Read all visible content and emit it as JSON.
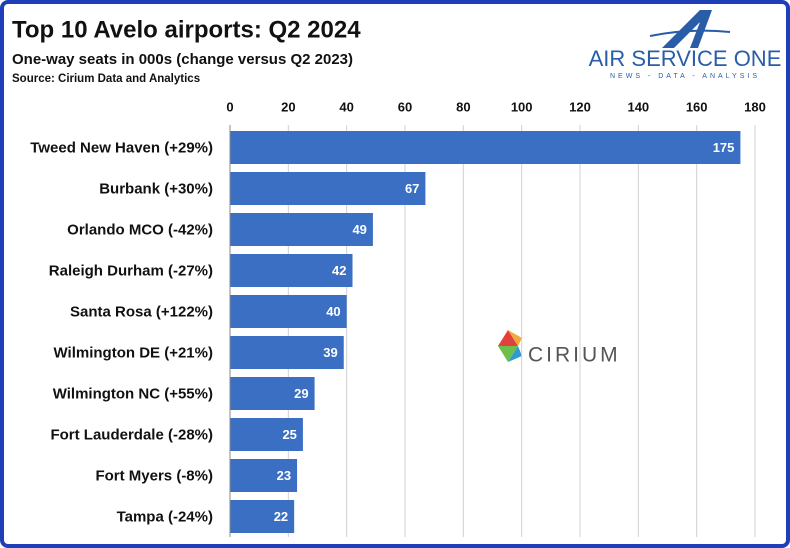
{
  "chart_data": {
    "type": "bar",
    "orientation": "horizontal",
    "title": "Top 10 Avelo airports: Q2 2024",
    "subtitle": "One-way seats in 000s (change versus Q2 2023)",
    "source": "Source: Cirium Data and Analytics",
    "categories": [
      "Tweed New Haven (+29%)",
      "Burbank (+30%)",
      "Orlando MCO (-42%)",
      "Raleigh Durham (-27%)",
      "Santa Rosa (+122%)",
      "Wilmington DE (+21%)",
      "Wilmington NC (+55%)",
      "Fort Lauderdale (-28%)",
      "Fort Myers (-8%)",
      "Tampa (-24%)"
    ],
    "values": [
      175,
      67,
      49,
      42,
      40,
      39,
      29,
      25,
      23,
      22
    ],
    "color": "#3a6fc4",
    "xlim": [
      0,
      180
    ],
    "xticks": [
      0,
      20,
      40,
      60,
      80,
      100,
      120,
      140,
      160,
      180
    ],
    "grid": true
  },
  "logos": {
    "air_service_one": "AIR SERVICE ONE",
    "tagline": "NEWS - DATA - ANALYSIS",
    "cirium": "CIRIUM"
  }
}
